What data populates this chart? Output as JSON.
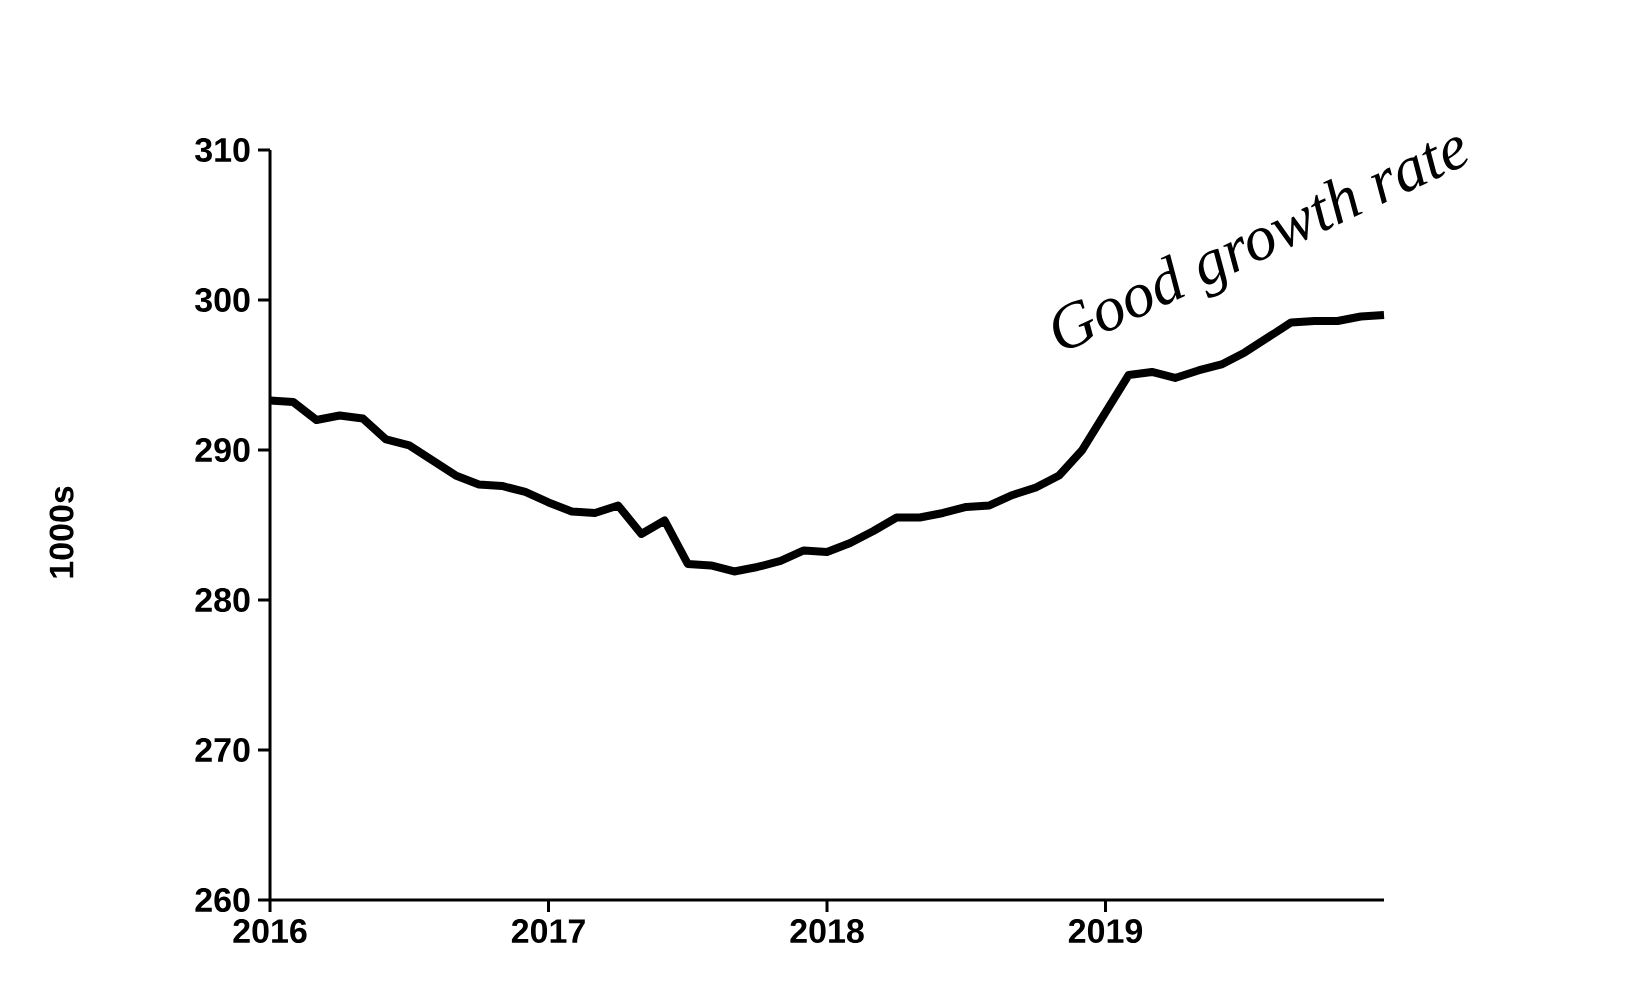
{
  "chart_data": {
    "type": "line",
    "ylabel": "1000s",
    "annotations": [
      "Good growth rate"
    ],
    "x": [
      "2016-01",
      "2016-02",
      "2016-03",
      "2016-04",
      "2016-05",
      "2016-06",
      "2016-07",
      "2016-08",
      "2016-09",
      "2016-10",
      "2016-11",
      "2016-12",
      "2017-01",
      "2017-02",
      "2017-03",
      "2017-04",
      "2017-05",
      "2017-06",
      "2017-07",
      "2017-08",
      "2017-09",
      "2017-10",
      "2017-11",
      "2017-12",
      "2018-01",
      "2018-02",
      "2018-03",
      "2018-04",
      "2018-05",
      "2018-06",
      "2018-07",
      "2018-08",
      "2018-09",
      "2018-10",
      "2018-11",
      "2018-12",
      "2019-01",
      "2019-02",
      "2019-03",
      "2019-04",
      "2019-05",
      "2019-06",
      "2019-07",
      "2019-08",
      "2019-09",
      "2019-10",
      "2019-11",
      "2019-12",
      "2020-01"
    ],
    "series": [
      {
        "color": "#000000",
        "values": [
          293.3,
          293.2,
          292.0,
          292.3,
          292.1,
          290.7,
          290.3,
          289.3,
          288.3,
          287.7,
          287.6,
          287.2,
          286.5,
          285.9,
          285.8,
          286.3,
          284.4,
          285.3,
          282.4,
          282.3,
          281.9,
          282.2,
          282.6,
          283.3,
          283.2,
          283.8,
          284.6,
          285.5,
          285.5,
          285.8,
          286.2,
          286.3,
          287.0,
          287.5,
          288.3,
          290.0,
          292.5,
          295.0,
          295.2,
          294.8,
          295.3,
          295.7,
          296.5,
          297.5,
          298.5,
          298.6,
          298.6,
          298.9,
          299.0
        ]
      }
    ],
    "xlim": [
      "2016-01",
      "2020-01"
    ],
    "xticks": [
      "2016",
      "2017",
      "2018",
      "2019"
    ],
    "ylim": [
      260,
      310
    ],
    "yticks": [
      260,
      270,
      280,
      290,
      300,
      310
    ],
    "grid": false,
    "marker": "none",
    "line_style": "solid"
  }
}
